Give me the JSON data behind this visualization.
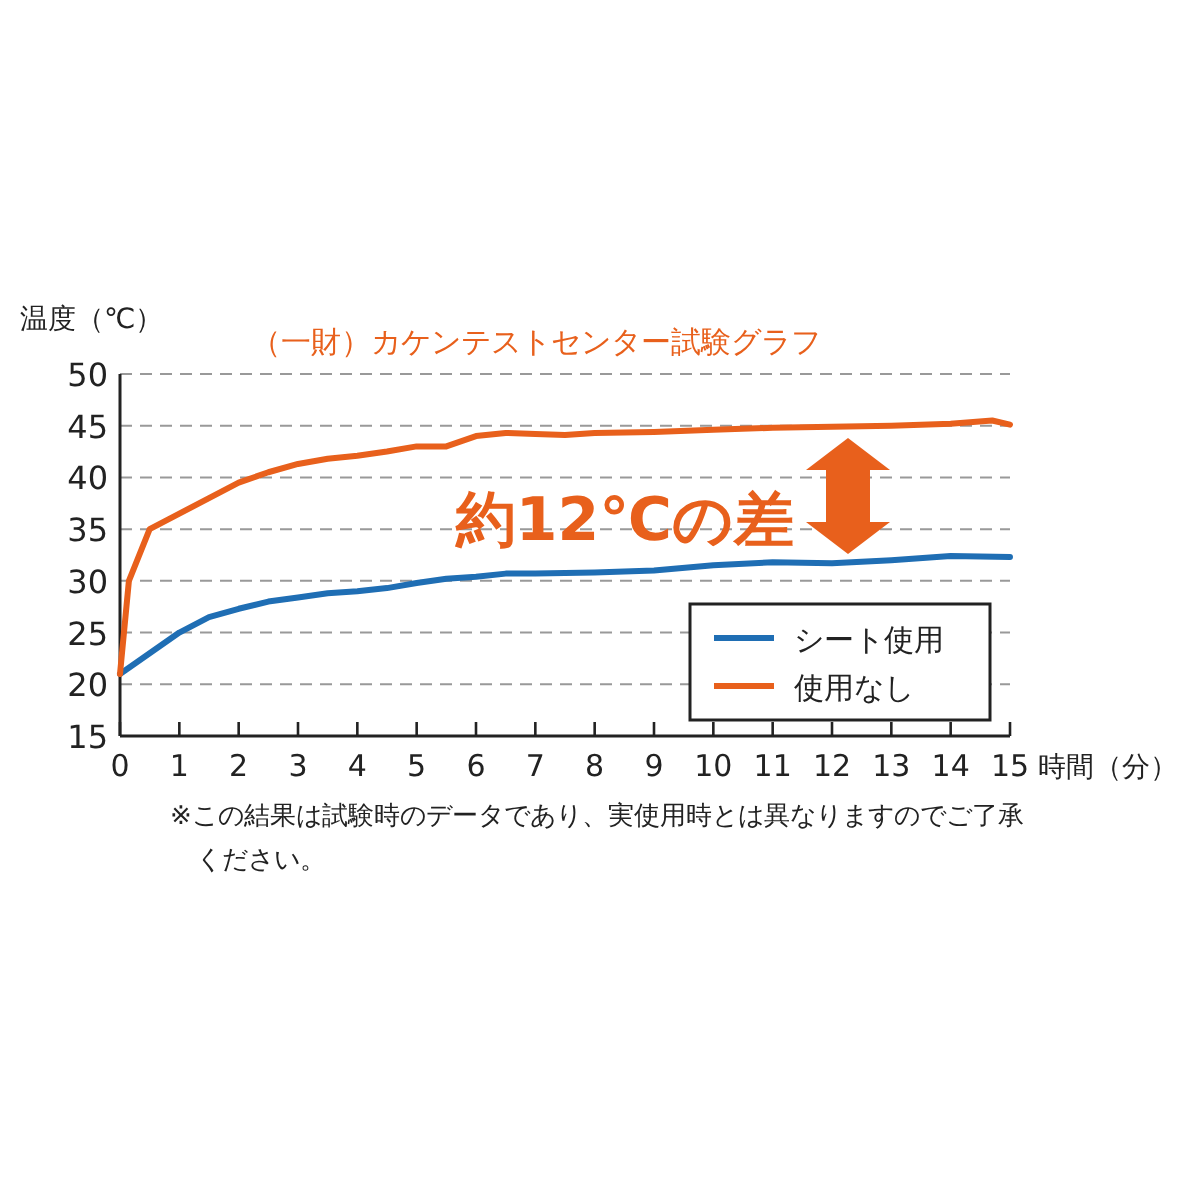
{
  "chart_data": {
    "type": "line",
    "title": "（一財）カケンテストセンター試験グラフ",
    "xlabel": "時間（分）",
    "ylabel": "温度（℃）",
    "xlim": [
      0,
      15
    ],
    "xticks": [
      0,
      1,
      2,
      3,
      4,
      5,
      6,
      7,
      8,
      9,
      10,
      11,
      12,
      13,
      14,
      15
    ],
    "ylim": [
      15,
      50
    ],
    "yticks": [
      15,
      20,
      25,
      30,
      35,
      40,
      45,
      50
    ],
    "grid": "y",
    "legend": "bottom right",
    "line_style": "solid",
    "series": [
      {
        "name": "シート使用",
        "color": "#1f6eb4",
        "x": [
          0,
          0.5,
          1,
          1.5,
          2,
          2.5,
          3,
          3.5,
          4,
          4.5,
          5,
          5.5,
          6,
          6.5,
          7,
          8,
          9,
          10,
          11,
          12,
          13,
          14,
          15
        ],
        "values": [
          21,
          23,
          25,
          26.5,
          27.3,
          28,
          28.4,
          28.8,
          29,
          29.3,
          29.8,
          30.2,
          30.4,
          30.7,
          30.7,
          30.8,
          31,
          31.5,
          31.8,
          31.7,
          32,
          32.4,
          32.3
        ]
      },
      {
        "name": "使用なし",
        "color": "#e8601c",
        "x": [
          0,
          0.15,
          0.5,
          1,
          1.5,
          2,
          2.5,
          3,
          3.5,
          4,
          4.5,
          5,
          5.5,
          6,
          6.5,
          7,
          7.5,
          8,
          9,
          10,
          11,
          12,
          13,
          14,
          14.7,
          15
        ],
        "values": [
          21,
          30,
          35,
          36.5,
          38,
          39.5,
          40.5,
          41.3,
          41.8,
          42.1,
          42.5,
          43,
          43,
          44,
          44.3,
          44.2,
          44.1,
          44.3,
          44.4,
          44.6,
          44.8,
          44.9,
          45,
          45.2,
          45.5,
          45.1
        ]
      }
    ],
    "annotations": [
      "約12℃の差",
      "※この結果は試験時のデータであり、実使用時とは異なりますのでご了承ください。"
    ]
  }
}
